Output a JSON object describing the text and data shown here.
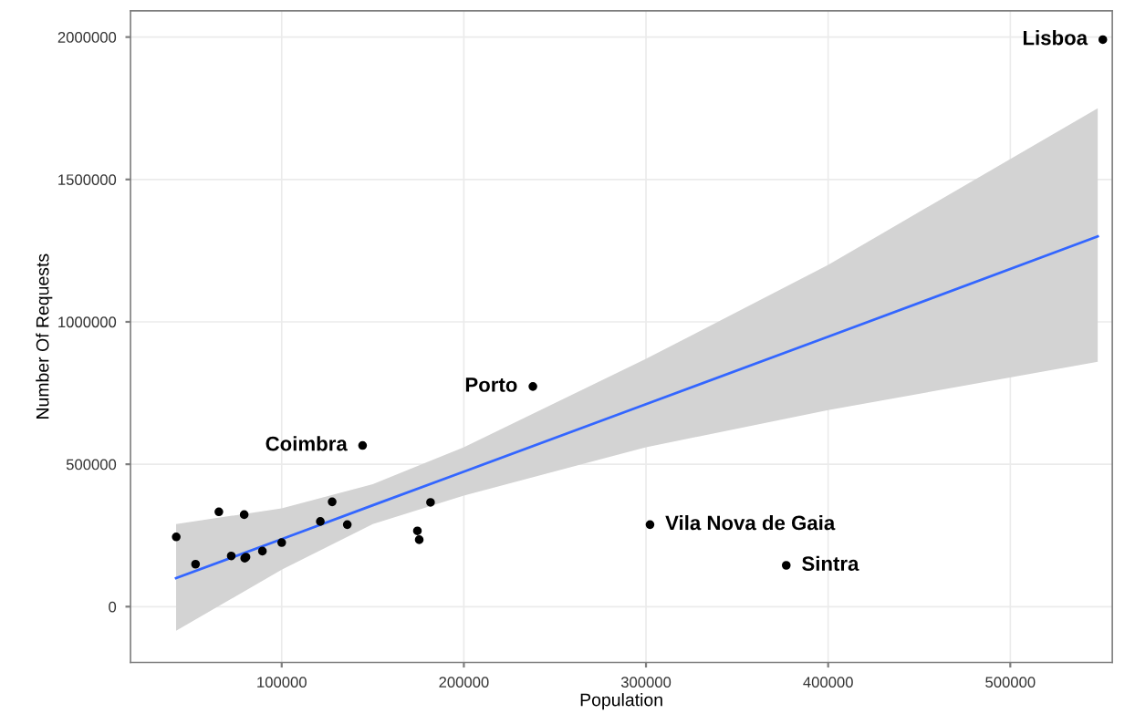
{
  "chart_data": {
    "type": "scatter",
    "xlabel": "Population",
    "ylabel": "Number Of Requests",
    "xlim": [
      17000,
      556000
    ],
    "ylim": [
      -196000,
      2092000
    ],
    "xticks": [
      100000,
      200000,
      300000,
      400000,
      500000
    ],
    "yticks": [
      0,
      500000,
      1000000,
      1500000,
      2000000
    ],
    "grid": true,
    "series": [
      {
        "color": "#000000",
        "marker": "circle",
        "x": [
          42100,
          52700,
          65500,
          72300,
          79400,
          79700,
          80400,
          89400,
          100000,
          121200,
          127700,
          136000,
          174500,
          175500,
          181700,
          144400,
          237900,
          302200,
          377000,
          550800
        ],
        "values": [
          245000,
          149000,
          333000,
          178000,
          323000,
          170000,
          174000,
          195000,
          225000,
          299000,
          368000,
          288000,
          266000,
          235000,
          366000,
          566000,
          773000,
          288000,
          145000,
          1991000
        ]
      },
      {
        "type": "line",
        "marker": "none",
        "color": "#3366ff",
        "x": [
          42000,
          100000,
          150000,
          200000,
          300000,
          400000,
          548000
        ],
        "values": [
          100000,
          237000,
          356000,
          474000,
          711000,
          948000,
          1300000
        ],
        "lower": [
          -85000,
          130000,
          290000,
          390000,
          560000,
          690000,
          860000
        ],
        "upper": [
          290000,
          345000,
          430000,
          560000,
          870000,
          1200000,
          1750000
        ]
      }
    ],
    "annotations": [
      {
        "text": "Lisboa",
        "x": 550800,
        "y": 1991000
      },
      {
        "text": "Porto",
        "x": 237900,
        "y": 773000
      },
      {
        "text": "Coimbra",
        "x": 144400,
        "y": 566000
      },
      {
        "text": "Vila Nova de Gaia",
        "x": 302200,
        "y": 288000
      },
      {
        "text": "Sintra",
        "x": 377000,
        "y": 145000
      }
    ]
  }
}
